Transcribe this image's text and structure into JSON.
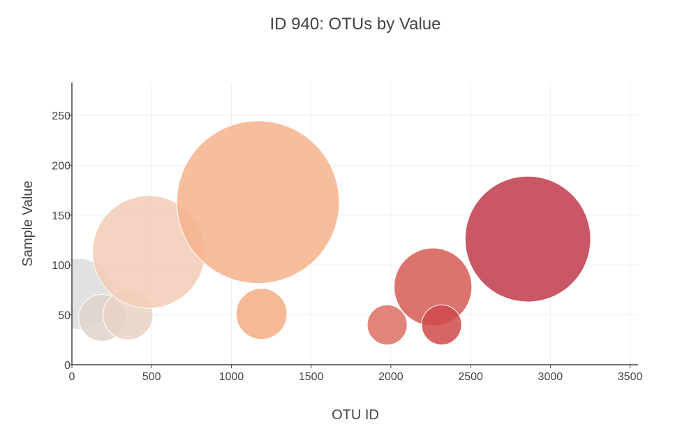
{
  "chart_data": {
    "type": "scatter",
    "title": "ID 940: OTUs by Value",
    "xlabel": "OTU ID",
    "ylabel": "Sample Value",
    "xlim": [
      0,
      3550
    ],
    "ylim": [
      0,
      283
    ],
    "x_ticks": [
      0,
      500,
      1000,
      1500,
      2000,
      2500,
      3000,
      3500
    ],
    "y_ticks": [
      0,
      50,
      100,
      150,
      200,
      250
    ],
    "grid": true,
    "legend": "none",
    "points": [
      {
        "x": 41,
        "y": 71,
        "size": 71,
        "color": "#dcdcdc"
      },
      {
        "x": 189,
        "y": 47,
        "size": 47,
        "color": "#dfd3cc"
      },
      {
        "x": 352,
        "y": 50,
        "size": 50,
        "color": "#e9d2c4"
      },
      {
        "x": 482,
        "y": 113,
        "size": 113,
        "color": "#f2cdb6"
      },
      {
        "x": 1167,
        "y": 163,
        "size": 163,
        "color": "#f6b38c"
      },
      {
        "x": 1189,
        "y": 51,
        "size": 51,
        "color": "#f5ad84"
      },
      {
        "x": 1977,
        "y": 40,
        "size": 40,
        "color": "#dc6f62"
      },
      {
        "x": 2264,
        "y": 78,
        "size": 78,
        "color": "#d65c55"
      },
      {
        "x": 2318,
        "y": 40,
        "size": 40,
        "color": "#d04a4a"
      },
      {
        "x": 2859,
        "y": 126,
        "size": 126,
        "color": "#c13a4a"
      }
    ]
  }
}
